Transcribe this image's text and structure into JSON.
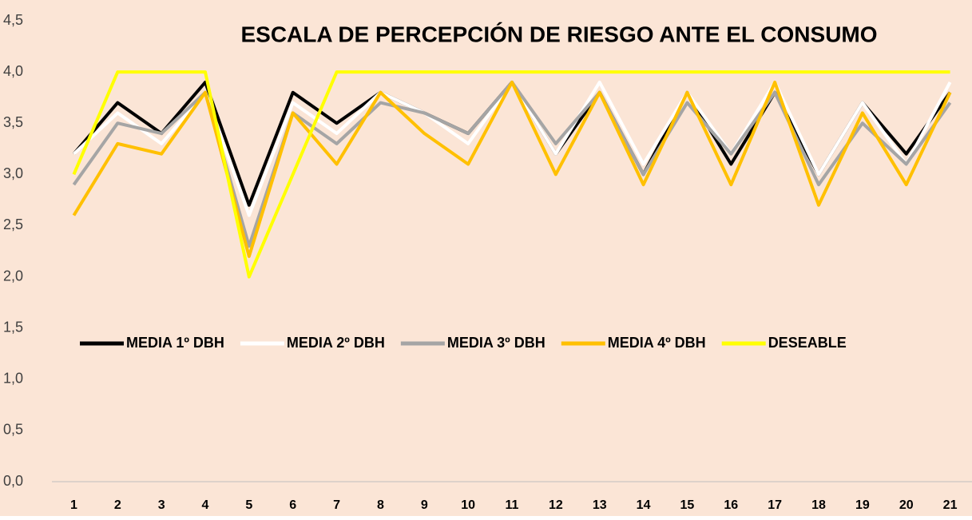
{
  "chart_data": {
    "type": "line",
    "title": "ESCALA DE PERCEPCIÓN DE RIESGO ANTE EL CONSUMO",
    "categories": [
      "1",
      "2",
      "3",
      "4",
      "5",
      "6",
      "7",
      "8",
      "9",
      "10",
      "11",
      "12",
      "13",
      "14",
      "15",
      "16",
      "17",
      "18",
      "19",
      "20",
      "21"
    ],
    "series": [
      {
        "name": "MEDIA 1º DBH",
        "color": "#000000",
        "values": [
          3.2,
          3.7,
          3.4,
          3.9,
          2.7,
          3.8,
          3.5,
          3.8,
          3.6,
          3.4,
          3.9,
          3.2,
          3.8,
          3.0,
          3.8,
          3.1,
          3.8,
          3.0,
          3.7,
          3.2,
          3.8
        ]
      },
      {
        "name": "MEDIA 2º DBH",
        "color": "#ffffff",
        "values": [
          3.2,
          3.6,
          3.3,
          3.8,
          2.6,
          3.7,
          3.4,
          3.8,
          3.6,
          3.3,
          3.9,
          3.2,
          3.9,
          3.1,
          3.8,
          3.2,
          3.9,
          3.0,
          3.7,
          3.1,
          3.9
        ]
      },
      {
        "name": "MEDIA 3º DBH",
        "color": "#a5a5a5",
        "values": [
          2.9,
          3.5,
          3.4,
          3.8,
          2.3,
          3.6,
          3.3,
          3.7,
          3.6,
          3.4,
          3.9,
          3.3,
          3.8,
          3.0,
          3.7,
          3.2,
          3.8,
          2.9,
          3.5,
          3.1,
          3.7
        ]
      },
      {
        "name": "MEDIA 4º DBH",
        "color": "#ffc000",
        "values": [
          2.6,
          3.3,
          3.2,
          3.8,
          2.2,
          3.6,
          3.1,
          3.8,
          3.4,
          3.1,
          3.9,
          3.0,
          3.8,
          2.9,
          3.8,
          2.9,
          3.9,
          2.7,
          3.6,
          2.9,
          3.8
        ]
      },
      {
        "name": "DESEABLE",
        "color": "#ffff00",
        "values": [
          3,
          4,
          4,
          4,
          2,
          3,
          4,
          4,
          4,
          4,
          4,
          4,
          4,
          4,
          4,
          4,
          4,
          4,
          4,
          4,
          4
        ]
      }
    ],
    "ylim": [
      0,
      4.5
    ],
    "yticks": [
      {
        "value": 0,
        "label": "0,0"
      },
      {
        "value": 0.5,
        "label": "0,5"
      },
      {
        "value": 1,
        "label": "1,0"
      },
      {
        "value": 1.5,
        "label": "1,5"
      },
      {
        "value": 2,
        "label": "2,0"
      },
      {
        "value": 2.5,
        "label": "2,5"
      },
      {
        "value": 3,
        "label": "3,0"
      },
      {
        "value": 3.5,
        "label": "3,5"
      },
      {
        "value": 4,
        "label": "4,0"
      },
      {
        "value": 4.5,
        "label": "4,5"
      }
    ],
    "grid": false,
    "legend": "center",
    "background": "#fbe5d6"
  }
}
